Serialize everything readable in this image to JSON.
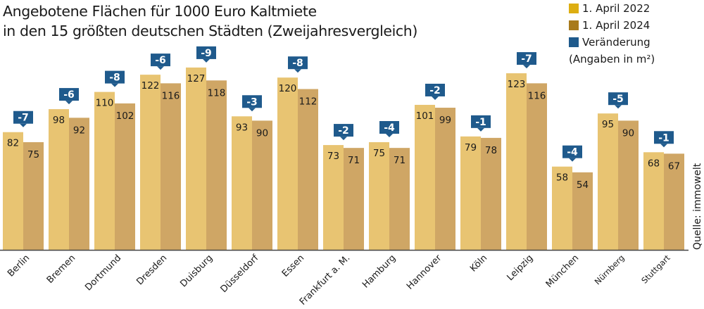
{
  "chart_data": {
    "type": "bar",
    "title_lines": [
      "Angebotene Flächen für 1000 Euro Kaltmiete",
      "in den 15 größten deutschen Städten (Zweijahresvergleich)"
    ],
    "categories": [
      "Berlin",
      "Bremen",
      "Dortmund",
      "Dresden",
      "Duisburg",
      "Düsseldorf",
      "Essen",
      "Frankfurt a. M.",
      "Hamburg",
      "Hannover",
      "Köln",
      "Leipzig",
      "München",
      "Nürnberg",
      "Stuttgart"
    ],
    "series": [
      {
        "name": "1. April 2022",
        "color": "#E8C472",
        "values": [
          82,
          98,
          110,
          122,
          127,
          93,
          120,
          73,
          75,
          101,
          79,
          123,
          58,
          95,
          68
        ]
      },
      {
        "name": "1. April 2024",
        "color": "#CFA665",
        "values": [
          75,
          92,
          102,
          116,
          118,
          90,
          112,
          71,
          71,
          99,
          78,
          116,
          54,
          90,
          67
        ]
      }
    ],
    "change": {
      "name": "Veränderung",
      "color": "#1F5A8C",
      "values": [
        "-7",
        "-6",
        "-8",
        "-6",
        "-9",
        "-3",
        "-8",
        "-2",
        "-4",
        "-2",
        "-1",
        "-7",
        "-4",
        "-5",
        "-1"
      ]
    },
    "legend_swatch_colors": [
      "#DDAE12",
      "#A87A1C",
      "#1F5A8C"
    ],
    "unit_note": "(Angaben in m²)",
    "source": "Quelle: immowelt",
    "ylim": [
      0,
      135
    ],
    "grid": false,
    "legend_position": "top-right",
    "xlabel": "",
    "ylabel": ""
  }
}
